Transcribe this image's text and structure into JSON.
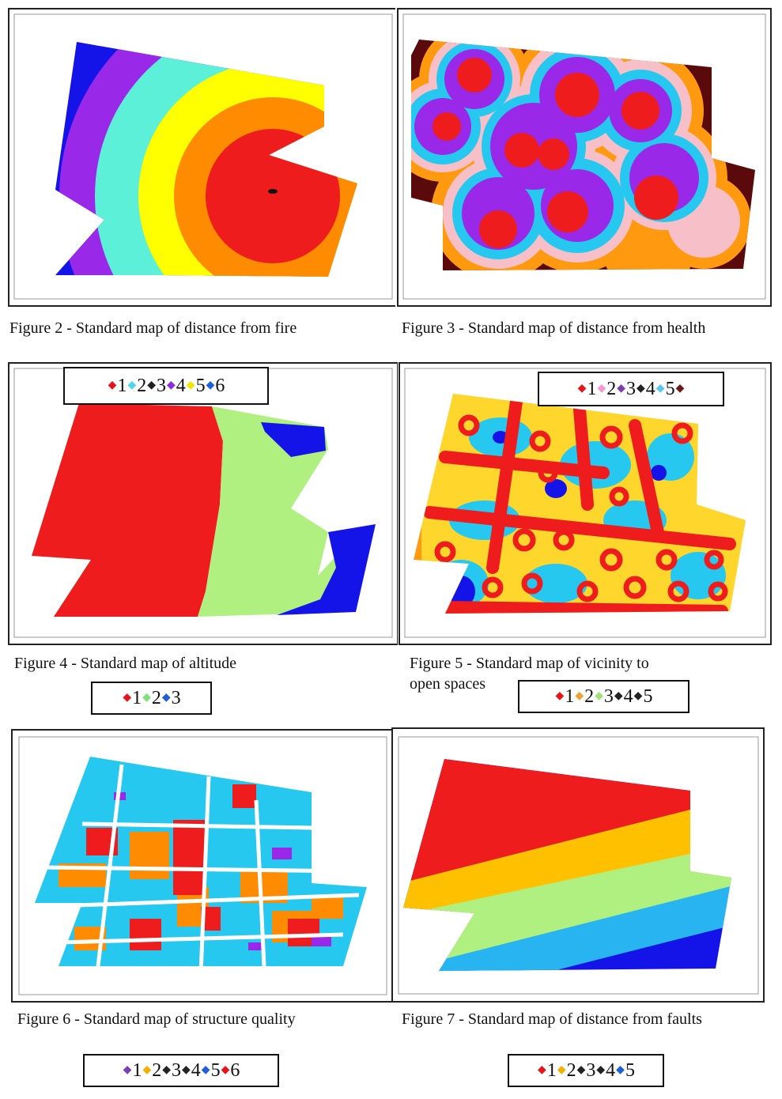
{
  "figures": [
    {
      "id": "fig2",
      "caption": "Figure 2 - Standard map of distance from fire"
    },
    {
      "id": "fig3",
      "caption": "Figure 3 - Standard map of distance from health"
    },
    {
      "id": "fig4",
      "caption": "Figure 4 - Standard map of altitude"
    },
    {
      "id": "fig5",
      "caption_line1": "Figure 5 - Standard map of vicinity to",
      "caption_line2": "open spaces"
    },
    {
      "id": "fig6",
      "caption": "Figure 6 - Standard map of structure quality"
    },
    {
      "id": "fig7",
      "caption": "Figure 7 - Standard map of distance from faults"
    }
  ],
  "legends": {
    "fig4_top": [
      {
        "label": "1",
        "color": "#e8141c"
      },
      {
        "label": "2",
        "color": "#4dd6e8"
      },
      {
        "label": "3",
        "color": "#222222"
      },
      {
        "label": "4",
        "color": "#8a2be2"
      },
      {
        "label": "5",
        "color": "#f2e600"
      },
      {
        "label": "6",
        "color": "#1f5fd8"
      }
    ],
    "fig5_top": [
      {
        "label": "1",
        "color": "#e8141c"
      },
      {
        "label": "2",
        "color": "#f29ad0"
      },
      {
        "label": "3",
        "color": "#7b3fb0"
      },
      {
        "label": "4",
        "color": "#222222"
      },
      {
        "label": "5",
        "color": "#55c8f0"
      },
      {
        "label": "",
        "color": "#6b1a1a"
      }
    ],
    "fig4_bottom": [
      {
        "label": "1",
        "color": "#e8141c"
      },
      {
        "label": "2",
        "color": "#7ee07a"
      },
      {
        "label": "3",
        "color": "#1f5fd8"
      }
    ],
    "fig5_bottom": [
      {
        "label": "1",
        "color": "#e8141c"
      },
      {
        "label": "2",
        "color": "#f2a030"
      },
      {
        "label": "3",
        "color": "#9ee07a"
      },
      {
        "label": "4",
        "color": "#222222"
      },
      {
        "label": "5",
        "color": "#222222"
      }
    ],
    "fig6_bottom": [
      {
        "label": "1",
        "color": "#7b3fb0"
      },
      {
        "label": "2",
        "color": "#f2b000"
      },
      {
        "label": "3",
        "color": "#222222"
      },
      {
        "label": "4",
        "color": "#222222"
      },
      {
        "label": "5",
        "color": "#1f5fd8"
      },
      {
        "label": "6",
        "color": "#e8141c"
      }
    ],
    "fig7_bottom": [
      {
        "label": "1",
        "color": "#e8141c"
      },
      {
        "label": "2",
        "color": "#f2b000"
      },
      {
        "label": "3",
        "color": "#222222"
      },
      {
        "label": "4",
        "color": "#222222"
      },
      {
        "label": "5",
        "color": "#1f5fd8"
      }
    ]
  },
  "colors": {
    "red": "#ee1c1c",
    "orange": "#ff8c00",
    "yellow": "#ffff00",
    "aqua": "#5cf0d8",
    "purple": "#9a28e8",
    "blue": "#1414e8",
    "pink": "#f7c0c8",
    "cyan": "#27c8f0",
    "brown": "#5a0a0a",
    "lightgreen": "#b0f080",
    "gold": "#ffc000",
    "skyblue": "#27b4f0"
  }
}
